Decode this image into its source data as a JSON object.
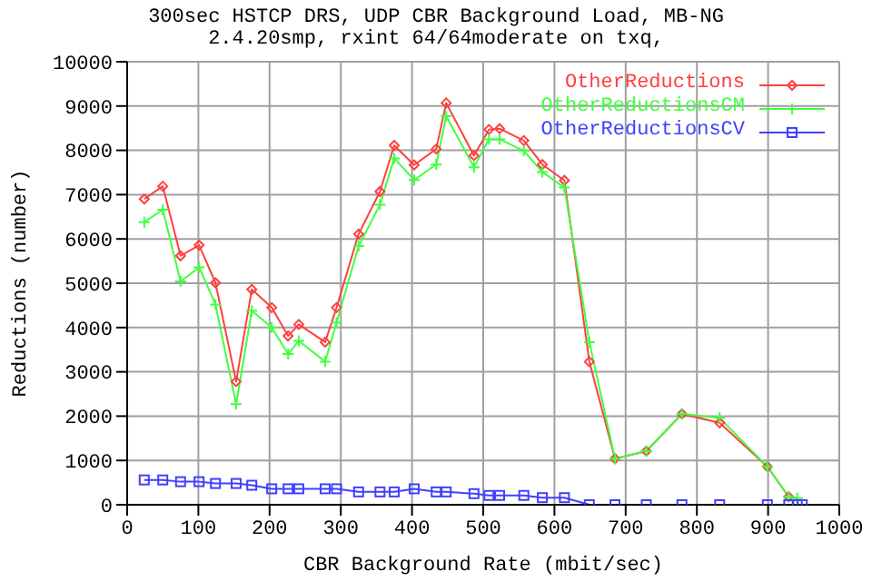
{
  "chart_data": {
    "type": "line",
    "title": "300sec HSTCP DRS, UDP CBR Background Load, MB-NG",
    "subtitle": "2.4.20smp, rxint 64/64moderate on txq,",
    "xlabel": "CBR Background Rate (mbit/sec)",
    "ylabel": "Reductions (number)",
    "xlim": [
      0,
      1000
    ],
    "xticks": [
      0,
      100,
      200,
      300,
      400,
      500,
      600,
      700,
      800,
      900,
      1000
    ],
    "ylim": [
      0,
      10000
    ],
    "yticks": [
      0,
      1000,
      2000,
      3000,
      4000,
      5000,
      6000,
      7000,
      8000,
      9000,
      10000
    ],
    "grid": true,
    "legend": "top right",
    "line_style": "solid",
    "series": [
      {
        "name": "OtherReductions",
        "color": "#ff4040",
        "marker": "diamond",
        "x": [
          24,
          50,
          75,
          101,
          124,
          153,
          175,
          203,
          226,
          241,
          278,
          294,
          325,
          355,
          375,
          403,
          434,
          448,
          487,
          508,
          523,
          557,
          583,
          614,
          649,
          685,
          729,
          779,
          832,
          899,
          929
        ],
        "values": [
          6900,
          7190,
          5620,
          5860,
          5010,
          2780,
          4860,
          4450,
          3810,
          4070,
          3670,
          4450,
          6110,
          7070,
          8110,
          7670,
          8030,
          9070,
          7880,
          8470,
          8490,
          8220,
          7680,
          7320,
          3230,
          1040,
          1210,
          2050,
          1850,
          860,
          180
        ]
      },
      {
        "name": "OtherReductionsCM",
        "color": "#40ff40",
        "marker": "cross",
        "x": [
          24,
          50,
          75,
          101,
          124,
          153,
          175,
          203,
          226,
          241,
          278,
          294,
          325,
          355,
          375,
          403,
          434,
          448,
          487,
          508,
          523,
          557,
          583,
          614,
          649,
          685,
          729,
          779,
          832,
          899,
          929,
          941
        ],
        "values": [
          6380,
          6660,
          5040,
          5360,
          4520,
          2270,
          4380,
          4000,
          3400,
          3700,
          3230,
          4110,
          5840,
          6770,
          7820,
          7330,
          7680,
          8770,
          7620,
          8250,
          8250,
          7990,
          7510,
          7160,
          3670,
          1040,
          1210,
          2050,
          1960,
          860,
          180,
          150
        ]
      },
      {
        "name": "OtherReductionsCV",
        "color": "#4040ff",
        "marker": "square",
        "x": [
          24,
          50,
          75,
          101,
          124,
          153,
          175,
          203,
          226,
          241,
          278,
          294,
          325,
          355,
          375,
          403,
          434,
          448,
          487,
          508,
          523,
          557,
          583,
          614,
          649,
          685,
          729,
          779,
          832,
          899,
          929,
          941,
          948
        ],
        "values": [
          560,
          560,
          520,
          520,
          480,
          480,
          440,
          360,
          360,
          360,
          360,
          360,
          290,
          290,
          290,
          360,
          290,
          290,
          250,
          210,
          210,
          210,
          160,
          160,
          0,
          0,
          0,
          0,
          0,
          0,
          0,
          0,
          0
        ]
      }
    ]
  }
}
